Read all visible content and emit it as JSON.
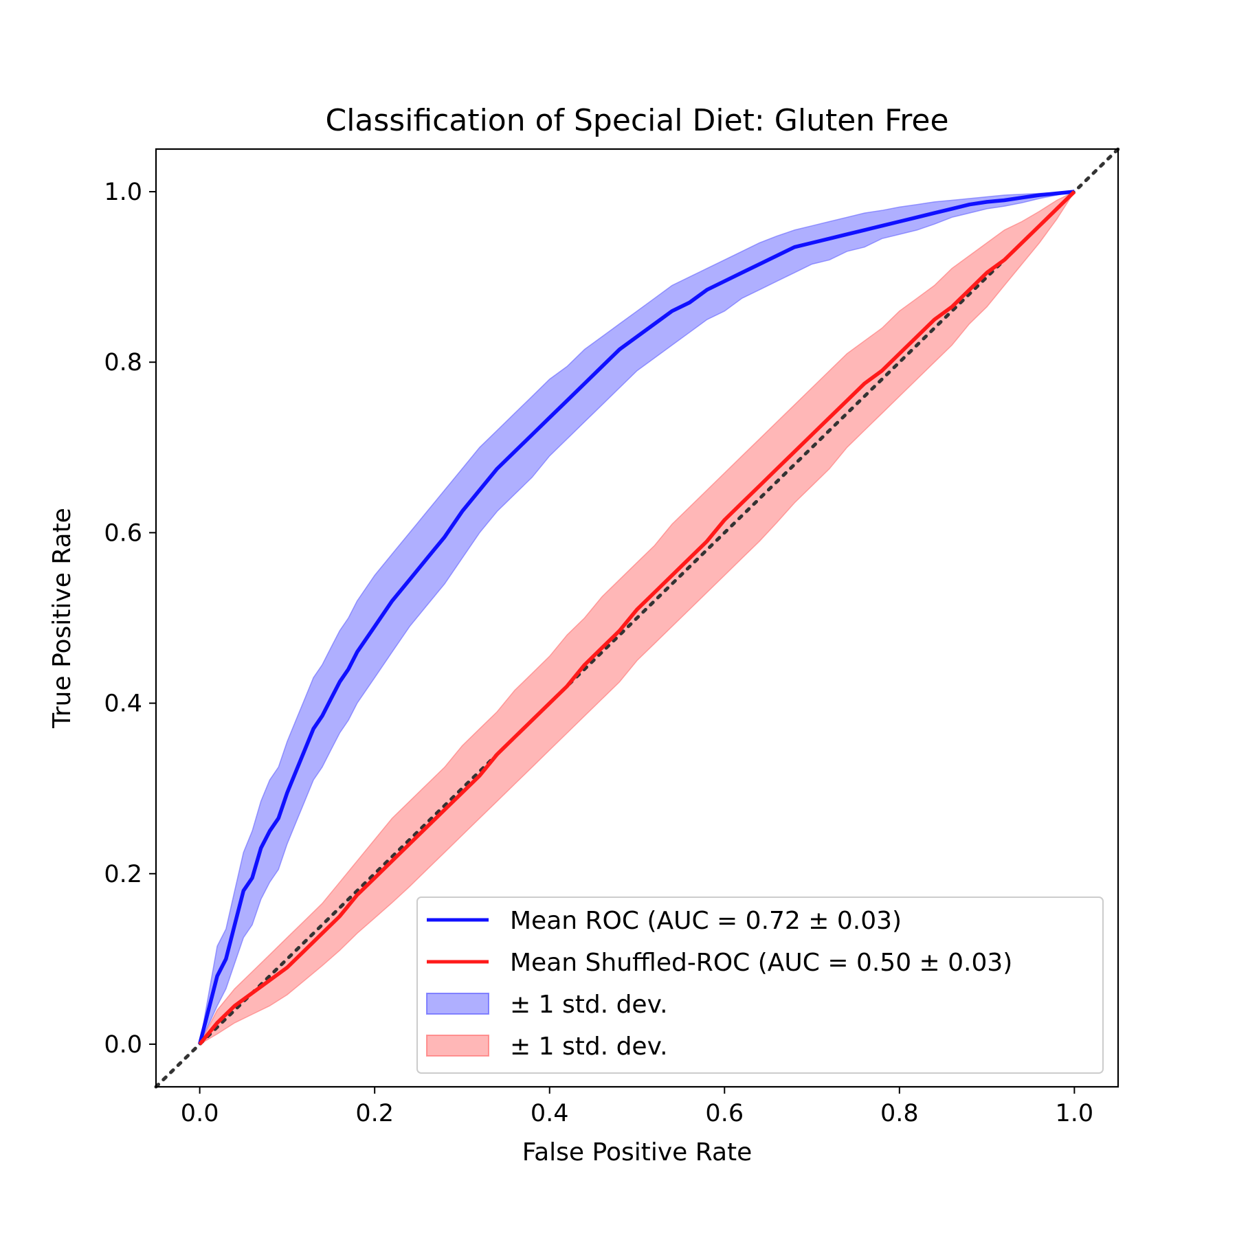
{
  "chart_data": {
    "type": "line",
    "title": "Classification of Special Diet: Gluten Free",
    "xlabel": "False Positive Rate",
    "ylabel": "True Positive Rate",
    "xlim": [
      -0.05,
      1.05
    ],
    "ylim": [
      -0.05,
      1.05
    ],
    "xticks": [
      "0.0",
      "0.2",
      "0.4",
      "0.6",
      "0.8",
      "1.0"
    ],
    "yticks": [
      "0.0",
      "0.2",
      "0.4",
      "0.6",
      "0.8",
      "1.0"
    ],
    "grid": false,
    "legend_position": "lower-right",
    "chance_line": {
      "x": [
        -0.05,
        1.05
      ],
      "y": [
        -0.05,
        1.05
      ],
      "color": "#333333",
      "style": "dotted"
    },
    "series": [
      {
        "name": "Mean ROC (AUC = 0.72 ± 0.03)",
        "color": "#1010ff",
        "x": [
          0.0,
          0.02,
          0.03,
          0.04,
          0.05,
          0.06,
          0.07,
          0.08,
          0.09,
          0.1,
          0.11,
          0.12,
          0.13,
          0.14,
          0.15,
          0.16,
          0.17,
          0.18,
          0.2,
          0.22,
          0.24,
          0.26,
          0.28,
          0.3,
          0.32,
          0.34,
          0.36,
          0.38,
          0.4,
          0.42,
          0.44,
          0.46,
          0.48,
          0.5,
          0.52,
          0.54,
          0.56,
          0.58,
          0.6,
          0.62,
          0.64,
          0.66,
          0.68,
          0.7,
          0.72,
          0.74,
          0.76,
          0.78,
          0.8,
          0.82,
          0.84,
          0.86,
          0.88,
          0.9,
          0.92,
          0.94,
          0.96,
          0.98,
          1.0
        ],
        "y": [
          0.0,
          0.08,
          0.1,
          0.14,
          0.18,
          0.195,
          0.23,
          0.25,
          0.265,
          0.295,
          0.32,
          0.345,
          0.37,
          0.385,
          0.405,
          0.425,
          0.44,
          0.46,
          0.49,
          0.52,
          0.545,
          0.57,
          0.595,
          0.625,
          0.65,
          0.675,
          0.695,
          0.715,
          0.735,
          0.755,
          0.775,
          0.795,
          0.815,
          0.83,
          0.845,
          0.86,
          0.87,
          0.885,
          0.895,
          0.905,
          0.915,
          0.925,
          0.935,
          0.94,
          0.945,
          0.95,
          0.955,
          0.96,
          0.965,
          0.97,
          0.975,
          0.98,
          0.985,
          0.988,
          0.99,
          0.993,
          0.996,
          0.998,
          1.0
        ],
        "band_name": "± 1 std. dev.",
        "band_color": "#6060ff",
        "band_lower": [
          0.0,
          0.045,
          0.065,
          0.095,
          0.125,
          0.14,
          0.17,
          0.19,
          0.205,
          0.235,
          0.26,
          0.285,
          0.31,
          0.325,
          0.345,
          0.365,
          0.38,
          0.4,
          0.43,
          0.46,
          0.49,
          0.515,
          0.54,
          0.57,
          0.6,
          0.625,
          0.645,
          0.665,
          0.69,
          0.71,
          0.73,
          0.75,
          0.77,
          0.79,
          0.805,
          0.82,
          0.835,
          0.85,
          0.86,
          0.875,
          0.885,
          0.895,
          0.905,
          0.915,
          0.92,
          0.93,
          0.935,
          0.945,
          0.95,
          0.955,
          0.962,
          0.97,
          0.975,
          0.98,
          0.983,
          0.987,
          0.992,
          0.996,
          1.0
        ],
        "band_upper": [
          0.0,
          0.115,
          0.135,
          0.18,
          0.225,
          0.25,
          0.285,
          0.31,
          0.325,
          0.355,
          0.38,
          0.405,
          0.43,
          0.445,
          0.465,
          0.485,
          0.5,
          0.52,
          0.55,
          0.575,
          0.6,
          0.625,
          0.65,
          0.675,
          0.7,
          0.72,
          0.74,
          0.76,
          0.78,
          0.795,
          0.815,
          0.83,
          0.845,
          0.86,
          0.875,
          0.89,
          0.9,
          0.91,
          0.92,
          0.93,
          0.94,
          0.948,
          0.955,
          0.96,
          0.965,
          0.97,
          0.975,
          0.978,
          0.982,
          0.985,
          0.988,
          0.99,
          0.992,
          0.994,
          0.996,
          0.997,
          0.998,
          0.999,
          1.0
        ]
      },
      {
        "name": "Mean Shuffled-ROC (AUC = 0.50 ± 0.03)",
        "color": "#ff1a1a",
        "x": [
          0.0,
          0.02,
          0.04,
          0.06,
          0.08,
          0.1,
          0.12,
          0.14,
          0.16,
          0.18,
          0.2,
          0.22,
          0.24,
          0.26,
          0.28,
          0.3,
          0.32,
          0.34,
          0.36,
          0.38,
          0.4,
          0.42,
          0.44,
          0.46,
          0.48,
          0.5,
          0.52,
          0.54,
          0.56,
          0.58,
          0.6,
          0.62,
          0.64,
          0.66,
          0.68,
          0.7,
          0.72,
          0.74,
          0.76,
          0.78,
          0.8,
          0.82,
          0.84,
          0.86,
          0.88,
          0.9,
          0.92,
          0.94,
          0.96,
          0.98,
          1.0
        ],
        "y": [
          0.0,
          0.025,
          0.045,
          0.06,
          0.075,
          0.09,
          0.11,
          0.13,
          0.15,
          0.175,
          0.195,
          0.215,
          0.235,
          0.255,
          0.275,
          0.295,
          0.315,
          0.34,
          0.36,
          0.38,
          0.4,
          0.42,
          0.445,
          0.465,
          0.485,
          0.51,
          0.53,
          0.55,
          0.57,
          0.59,
          0.615,
          0.635,
          0.655,
          0.675,
          0.695,
          0.715,
          0.735,
          0.755,
          0.775,
          0.79,
          0.81,
          0.83,
          0.85,
          0.865,
          0.885,
          0.905,
          0.92,
          0.94,
          0.96,
          0.98,
          1.0
        ],
        "band_name": "± 1 std. dev.",
        "band_color": "#ff7070",
        "band_lower": [
          0.0,
          0.012,
          0.025,
          0.035,
          0.045,
          0.058,
          0.075,
          0.092,
          0.11,
          0.13,
          0.148,
          0.166,
          0.185,
          0.205,
          0.225,
          0.245,
          0.265,
          0.285,
          0.305,
          0.325,
          0.345,
          0.365,
          0.385,
          0.405,
          0.425,
          0.45,
          0.47,
          0.49,
          0.51,
          0.53,
          0.55,
          0.57,
          0.59,
          0.612,
          0.635,
          0.655,
          0.675,
          0.7,
          0.72,
          0.74,
          0.76,
          0.78,
          0.8,
          0.82,
          0.845,
          0.865,
          0.89,
          0.915,
          0.94,
          0.968,
          1.0
        ],
        "band_upper": [
          0.0,
          0.04,
          0.065,
          0.085,
          0.105,
          0.125,
          0.145,
          0.165,
          0.19,
          0.215,
          0.24,
          0.265,
          0.285,
          0.305,
          0.325,
          0.35,
          0.37,
          0.39,
          0.415,
          0.435,
          0.455,
          0.48,
          0.5,
          0.525,
          0.545,
          0.565,
          0.585,
          0.61,
          0.63,
          0.65,
          0.67,
          0.69,
          0.71,
          0.73,
          0.75,
          0.77,
          0.79,
          0.81,
          0.825,
          0.84,
          0.86,
          0.875,
          0.89,
          0.91,
          0.925,
          0.94,
          0.955,
          0.965,
          0.977,
          0.99,
          1.0
        ]
      }
    ]
  }
}
